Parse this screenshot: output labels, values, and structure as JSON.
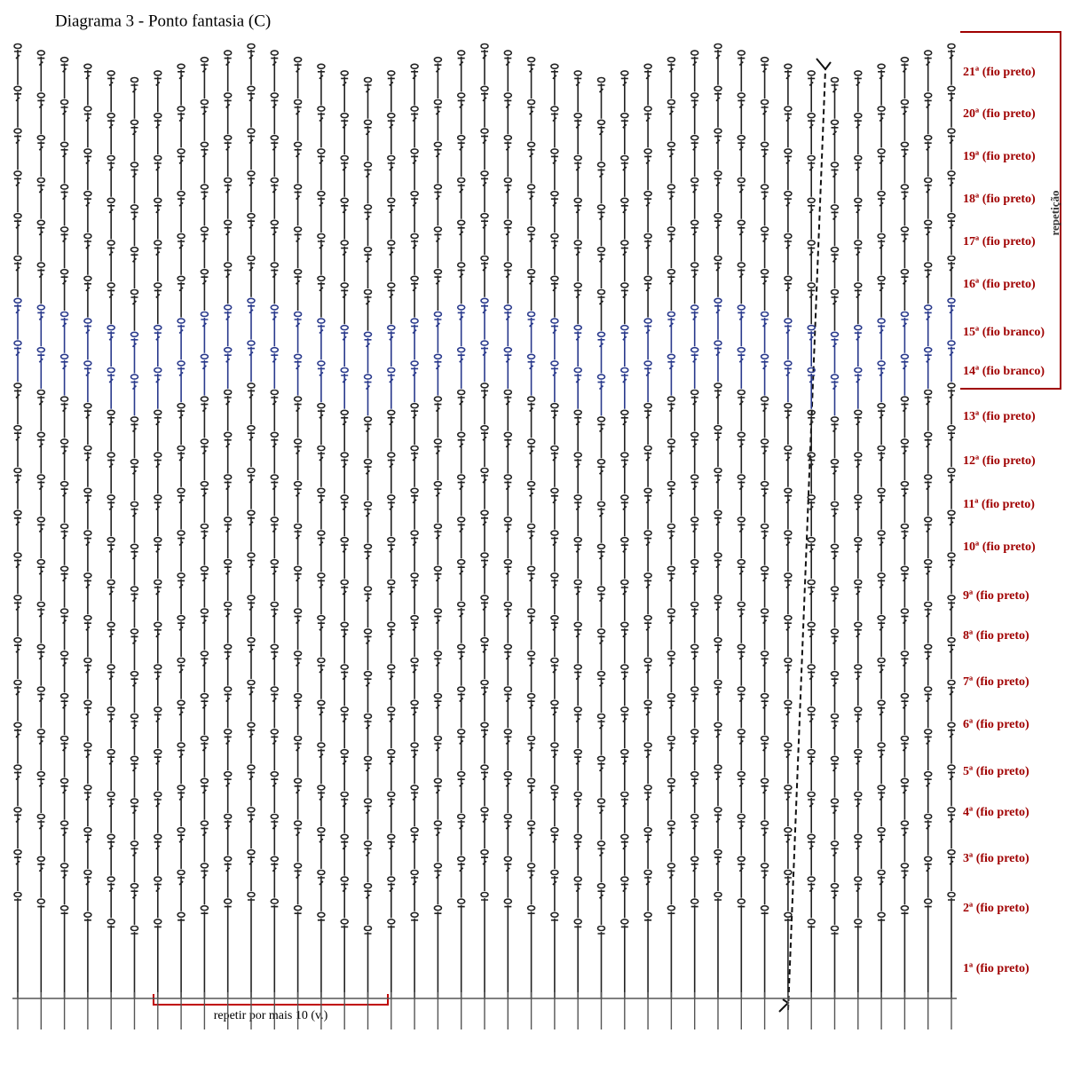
{
  "title": "Diagrama 3 - Ponto fantasia (C)",
  "repeat_side_label": "repetição",
  "repeat_bottom_label": "repetir por mais 10 (v.)",
  "rows": [
    "21ª (fio preto)",
    "20ª (fio preto)",
    "19ª (fio preto)",
    "18ª (fio preto)",
    "17ª (fio preto)",
    "16ª (fio preto)",
    "15ª (fio branco)",
    "14ª (fio branco)",
    "13ª (fio preto)",
    "12ª (fio preto)",
    "11ª (fio preto)",
    "10ª (fio preto)",
    "9ª (fio preto)",
    "8ª (fio preto)",
    "7ª (fio preto)",
    "6ª (fio preto)",
    "5ª (fio preto)",
    "4ª (fio preto)",
    "3ª (fio preto)",
    "2ª (fio preto)",
    "1ª (fio preto)"
  ]
}
